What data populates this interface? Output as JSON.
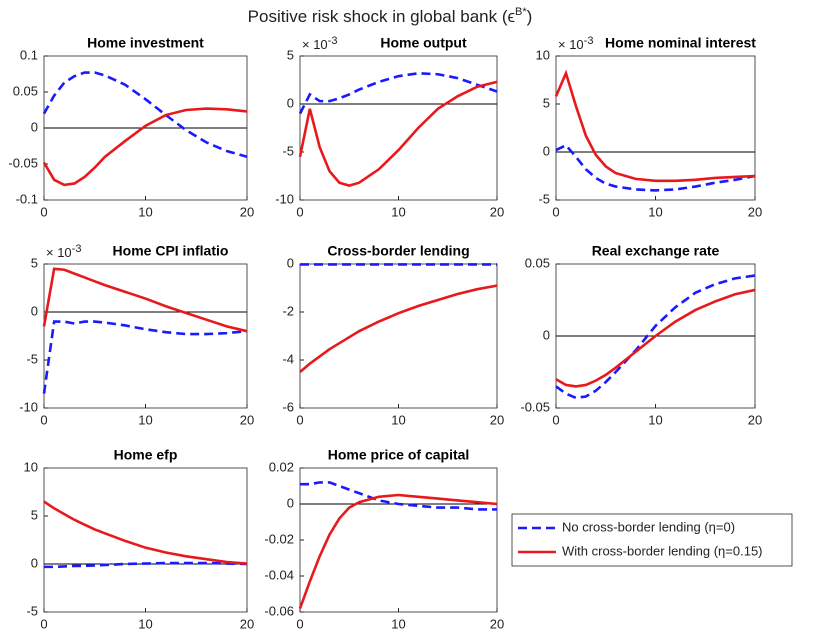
{
  "title": {
    "main": "Positive risk shock in global bank (ϵ",
    "superscript": "B*",
    "close": ")"
  },
  "chart_data": [
    {
      "type": "line",
      "title": "Home investment",
      "x": [
        0,
        1,
        2,
        3,
        4,
        5,
        6,
        8,
        10,
        12,
        14,
        16,
        18,
        20
      ],
      "xlim": [
        0,
        20
      ],
      "xticks": [
        0,
        10,
        20
      ],
      "ylim": [
        -0.1,
        0.1
      ],
      "yticks": [
        -0.1,
        -0.05,
        0,
        0.05,
        0.1
      ],
      "series": [
        {
          "color": "#1a1aff",
          "dashed": true,
          "values": [
            0.02,
            0.045,
            0.063,
            0.072,
            0.077,
            0.077,
            0.073,
            0.06,
            0.04,
            0.018,
            -0.003,
            -0.02,
            -0.032,
            -0.04
          ]
        },
        {
          "color": "#e8191c",
          "dashed": false,
          "values": [
            -0.048,
            -0.072,
            -0.079,
            -0.077,
            -0.068,
            -0.055,
            -0.04,
            -0.018,
            0.003,
            0.018,
            0.025,
            0.027,
            0.026,
            0.023
          ]
        }
      ]
    },
    {
      "type": "line",
      "title": "Home output",
      "multiplier": {
        "base": "× 10",
        "exponent": "-3"
      },
      "x": [
        0,
        1,
        2,
        3,
        4,
        5,
        6,
        8,
        10,
        12,
        14,
        16,
        18,
        20
      ],
      "xlim": [
        0,
        20
      ],
      "xticks": [
        0,
        10,
        20
      ],
      "ylim": [
        -10,
        5
      ],
      "yticks": [
        -10,
        -5,
        0,
        5
      ],
      "series": [
        {
          "color": "#1a1aff",
          "dashed": true,
          "values": [
            -1,
            1,
            0.3,
            0.3,
            0.6,
            1,
            1.5,
            2.3,
            2.9,
            3.2,
            3.1,
            2.7,
            2,
            1.3
          ]
        },
        {
          "color": "#e8191c",
          "dashed": false,
          "values": [
            -5.5,
            -0.5,
            -4.5,
            -7,
            -8.2,
            -8.5,
            -8.2,
            -6.8,
            -4.8,
            -2.5,
            -0.5,
            0.8,
            1.8,
            2.3
          ]
        }
      ]
    },
    {
      "type": "line",
      "title": "Home nominal interest",
      "multiplier": {
        "base": "× 10",
        "exponent": "-3"
      },
      "x": [
        0,
        1,
        2,
        3,
        4,
        5,
        6,
        8,
        10,
        12,
        14,
        16,
        18,
        20
      ],
      "xlim": [
        0,
        20
      ],
      "xticks": [
        0,
        10,
        20
      ],
      "ylim": [
        -5,
        10
      ],
      "yticks": [
        -5,
        0,
        5,
        10
      ],
      "series": [
        {
          "color": "#1a1aff",
          "dashed": true,
          "values": [
            0.2,
            0.7,
            -0.5,
            -1.8,
            -2.7,
            -3.3,
            -3.6,
            -3.9,
            -4,
            -3.9,
            -3.6,
            -3.2,
            -2.9,
            -2.5
          ]
        },
        {
          "color": "#e8191c",
          "dashed": false,
          "values": [
            5.8,
            8.2,
            4.8,
            1.7,
            -0.3,
            -1.5,
            -2.2,
            -2.8,
            -3,
            -3,
            -2.9,
            -2.7,
            -2.6,
            -2.5
          ]
        }
      ]
    },
    {
      "type": "line",
      "title": "Home CPI inflatio",
      "multiplier": {
        "base": "× 10",
        "exponent": "-3"
      },
      "x": [
        0,
        1,
        2,
        3,
        4,
        5,
        6,
        8,
        10,
        12,
        14,
        16,
        18,
        20
      ],
      "xlim": [
        0,
        20
      ],
      "xticks": [
        0,
        10,
        20
      ],
      "ylim": [
        -10,
        5
      ],
      "yticks": [
        -10,
        -5,
        0,
        5
      ],
      "series": [
        {
          "color": "#1a1aff",
          "dashed": true,
          "values": [
            -8.5,
            -1,
            -1,
            -1.2,
            -1,
            -1,
            -1.1,
            -1.4,
            -1.8,
            -2.1,
            -2.3,
            -2.3,
            -2.2,
            -2
          ]
        },
        {
          "color": "#e8191c",
          "dashed": false,
          "values": [
            -1.5,
            4.5,
            4.4,
            4,
            3.6,
            3.2,
            2.8,
            2.1,
            1.4,
            0.6,
            -0.1,
            -0.8,
            -1.5,
            -2
          ]
        }
      ]
    },
    {
      "type": "line",
      "title": "Cross-border lending",
      "x": [
        0,
        1,
        2,
        3,
        4,
        5,
        6,
        8,
        10,
        12,
        14,
        16,
        18,
        20
      ],
      "xlim": [
        0,
        20
      ],
      "xticks": [
        0,
        10,
        20
      ],
      "ylim": [
        -6,
        0
      ],
      "yticks": [
        -6,
        -4,
        -2,
        0
      ],
      "series": [
        {
          "color": "#1a1aff",
          "dashed": true,
          "values": [
            -0.02,
            -0.02,
            -0.02,
            -0.02,
            -0.02,
            -0.02,
            -0.02,
            -0.02,
            -0.02,
            -0.02,
            -0.02,
            -0.02,
            -0.02,
            -0.02
          ]
        },
        {
          "color": "#e8191c",
          "dashed": false,
          "values": [
            -4.5,
            -4.15,
            -3.85,
            -3.55,
            -3.3,
            -3.05,
            -2.8,
            -2.4,
            -2.05,
            -1.75,
            -1.5,
            -1.25,
            -1.05,
            -0.9
          ]
        }
      ]
    },
    {
      "type": "line",
      "title": "Real exchange rate",
      "x": [
        0,
        1,
        2,
        3,
        4,
        5,
        6,
        8,
        10,
        12,
        14,
        16,
        18,
        20
      ],
      "xlim": [
        0,
        20
      ],
      "xticks": [
        0,
        10,
        20
      ],
      "ylim": [
        -0.05,
        0.05
      ],
      "yticks": [
        -0.05,
        0,
        0.05
      ],
      "series": [
        {
          "color": "#1a1aff",
          "dashed": true,
          "values": [
            -0.035,
            -0.04,
            -0.043,
            -0.042,
            -0.038,
            -0.032,
            -0.025,
            -0.01,
            0.007,
            0.02,
            0.03,
            0.036,
            0.04,
            0.042
          ]
        },
        {
          "color": "#e8191c",
          "dashed": false,
          "values": [
            -0.03,
            -0.034,
            -0.035,
            -0.034,
            -0.031,
            -0.027,
            -0.022,
            -0.011,
            0,
            0.01,
            0.018,
            0.024,
            0.029,
            0.032
          ]
        }
      ]
    },
    {
      "type": "line",
      "title": "Home efp",
      "x": [
        0,
        1,
        2,
        3,
        4,
        5,
        6,
        8,
        10,
        12,
        14,
        16,
        18,
        20
      ],
      "xlim": [
        0,
        20
      ],
      "xticks": [
        0,
        10,
        20
      ],
      "ylim": [
        -5,
        10
      ],
      "yticks": [
        -5,
        0,
        5,
        10
      ],
      "series": [
        {
          "color": "#1a1aff",
          "dashed": true,
          "values": [
            -0.3,
            -0.3,
            -0.25,
            -0.2,
            -0.2,
            -0.15,
            -0.1,
            0,
            0.05,
            0.1,
            0.1,
            0.1,
            0.05,
            0
          ]
        },
        {
          "color": "#e8191c",
          "dashed": false,
          "values": [
            6.5,
            5.8,
            5.2,
            4.6,
            4.1,
            3.6,
            3.2,
            2.4,
            1.7,
            1.2,
            0.8,
            0.5,
            0.2,
            0.05
          ]
        }
      ]
    },
    {
      "type": "line",
      "title": "Home price of capital",
      "x": [
        0,
        1,
        2,
        3,
        4,
        5,
        6,
        8,
        10,
        12,
        14,
        16,
        18,
        20
      ],
      "xlim": [
        0,
        20
      ],
      "xticks": [
        0,
        10,
        20
      ],
      "ylim": [
        -0.06,
        0.02
      ],
      "yticks": [
        -0.06,
        -0.04,
        -0.02,
        0,
        0.02
      ],
      "series": [
        {
          "name": "No cross-border lending (η=0)",
          "color": "#1a1aff",
          "dashed": true,
          "values": [
            0.011,
            0.011,
            0.012,
            0.012,
            0.01,
            0.008,
            0.006,
            0.002,
            0,
            -0.001,
            -0.002,
            -0.002,
            -0.003,
            -0.003
          ]
        },
        {
          "name": "With cross-border lending (η=0.15)",
          "color": "#e8191c",
          "dashed": false,
          "values": [
            -0.058,
            -0.043,
            -0.029,
            -0.017,
            -0.008,
            -0.002,
            0.001,
            0.004,
            0.005,
            0.004,
            0.003,
            0.002,
            0.001,
            0
          ]
        }
      ]
    }
  ]
}
